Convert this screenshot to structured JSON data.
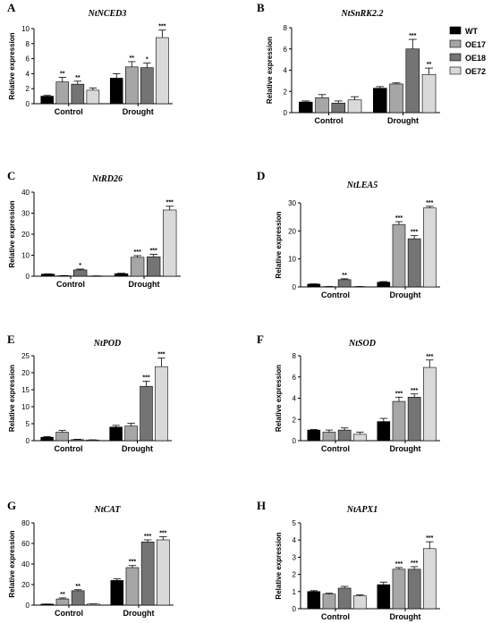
{
  "chart_data": [
    {
      "type": "bar",
      "panel": "A",
      "title": "NtNCED3",
      "ylabel": "Relative expression",
      "categories": [
        "Control",
        "Drought"
      ],
      "ylim": [
        0,
        10
      ],
      "yticks": [
        0,
        2,
        4,
        6,
        8,
        10
      ],
      "series": [
        {
          "name": "WT",
          "values": [
            1.0,
            3.4
          ],
          "errors": [
            0.1,
            0.6
          ],
          "sig": [
            "",
            ""
          ]
        },
        {
          "name": "OE17",
          "values": [
            2.9,
            4.9
          ],
          "errors": [
            0.6,
            0.7
          ],
          "sig": [
            "**",
            "**"
          ]
        },
        {
          "name": "OE18",
          "values": [
            2.6,
            4.8
          ],
          "errors": [
            0.4,
            0.6
          ],
          "sig": [
            "**",
            "*"
          ]
        },
        {
          "name": "OE72",
          "values": [
            1.8,
            8.8
          ],
          "errors": [
            0.3,
            1.0
          ],
          "sig": [
            "",
            "***"
          ]
        }
      ]
    },
    {
      "type": "bar",
      "panel": "B",
      "title": "NtSnRK2.2",
      "ylabel": "Relative expression",
      "categories": [
        "Control",
        "Drought"
      ],
      "ylim": [
        0,
        8
      ],
      "yticks": [
        0,
        2,
        4,
        6,
        8
      ],
      "series": [
        {
          "name": "WT",
          "values": [
            1.0,
            2.3
          ],
          "errors": [
            0.1,
            0.15
          ],
          "sig": [
            "",
            ""
          ]
        },
        {
          "name": "OE17",
          "values": [
            1.4,
            2.7
          ],
          "errors": [
            0.3,
            0.1
          ],
          "sig": [
            "",
            ""
          ]
        },
        {
          "name": "OE18",
          "values": [
            0.9,
            6.0
          ],
          "errors": [
            0.2,
            0.9
          ],
          "sig": [
            "",
            "***"
          ]
        },
        {
          "name": "OE72",
          "values": [
            1.2,
            3.6
          ],
          "errors": [
            0.3,
            0.6
          ],
          "sig": [
            "",
            "**"
          ]
        }
      ]
    },
    {
      "type": "bar",
      "panel": "C",
      "title": "NtRD26",
      "ylabel": "Relative expression",
      "categories": [
        "Control",
        "Drought"
      ],
      "ylim": [
        0,
        40
      ],
      "yticks": [
        0,
        10,
        20,
        30,
        40
      ],
      "series": [
        {
          "name": "WT",
          "values": [
            1.0,
            1.2
          ],
          "errors": [
            0.1,
            0.2
          ],
          "sig": [
            "",
            ""
          ]
        },
        {
          "name": "OE17",
          "values": [
            0.2,
            9.0
          ],
          "errors": [
            0.1,
            0.8
          ],
          "sig": [
            "",
            "***"
          ]
        },
        {
          "name": "OE18",
          "values": [
            3.0,
            9.2
          ],
          "errors": [
            0.4,
            1.2
          ],
          "sig": [
            "*",
            "***"
          ]
        },
        {
          "name": "OE72",
          "values": [
            0.1,
            31.5
          ],
          "errors": [
            0.05,
            1.8
          ],
          "sig": [
            "",
            "***"
          ]
        }
      ]
    },
    {
      "type": "bar",
      "panel": "D",
      "title": "NtLEA5",
      "ylabel": "Relative expression",
      "categories": [
        "Control",
        "Drought"
      ],
      "ylim": [
        0,
        30
      ],
      "yticks": [
        0,
        10,
        20,
        30
      ],
      "series": [
        {
          "name": "WT",
          "values": [
            1.0,
            1.7
          ],
          "errors": [
            0.1,
            0.2
          ],
          "sig": [
            "",
            ""
          ]
        },
        {
          "name": "OE17",
          "values": [
            0.1,
            22.3
          ],
          "errors": [
            0.05,
            1.0
          ],
          "sig": [
            "",
            "***"
          ]
        },
        {
          "name": "OE18",
          "values": [
            2.6,
            17.2
          ],
          "errors": [
            0.3,
            1.1
          ],
          "sig": [
            "**",
            "***"
          ]
        },
        {
          "name": "OE72",
          "values": [
            0.1,
            28.2
          ],
          "errors": [
            0.05,
            0.6
          ],
          "sig": [
            "",
            "***"
          ]
        }
      ]
    },
    {
      "type": "bar",
      "panel": "E",
      "title": "NtPOD",
      "ylabel": "Relative expression",
      "categories": [
        "Control",
        "Drought"
      ],
      "ylim": [
        0,
        25
      ],
      "yticks": [
        0,
        5,
        10,
        15,
        20,
        25
      ],
      "series": [
        {
          "name": "WT",
          "values": [
            1.0,
            4.0
          ],
          "errors": [
            0.2,
            0.5
          ],
          "sig": [
            "",
            ""
          ]
        },
        {
          "name": "OE17",
          "values": [
            2.5,
            4.3
          ],
          "errors": [
            0.5,
            0.8
          ],
          "sig": [
            "",
            ""
          ]
        },
        {
          "name": "OE18",
          "values": [
            0.3,
            16.0
          ],
          "errors": [
            0.1,
            1.5
          ],
          "sig": [
            "",
            "***"
          ]
        },
        {
          "name": "OE72",
          "values": [
            0.2,
            21.8
          ],
          "errors": [
            0.05,
            2.5
          ],
          "sig": [
            "",
            "***"
          ]
        }
      ]
    },
    {
      "type": "bar",
      "panel": "F",
      "title": "NtSOD",
      "ylabel": "Relative expression",
      "categories": [
        "Control",
        "Drought"
      ],
      "ylim": [
        0,
        8
      ],
      "yticks": [
        0,
        2,
        4,
        6,
        8
      ],
      "series": [
        {
          "name": "WT",
          "values": [
            1.0,
            1.8
          ],
          "errors": [
            0.05,
            0.3
          ],
          "sig": [
            "",
            ""
          ]
        },
        {
          "name": "OE17",
          "values": [
            0.8,
            3.7
          ],
          "errors": [
            0.2,
            0.4
          ],
          "sig": [
            "",
            "***"
          ]
        },
        {
          "name": "OE18",
          "values": [
            1.0,
            4.1
          ],
          "errors": [
            0.2,
            0.3
          ],
          "sig": [
            "",
            "***"
          ]
        },
        {
          "name": "OE72",
          "values": [
            0.6,
            6.9
          ],
          "errors": [
            0.2,
            0.7
          ],
          "sig": [
            "",
            "***"
          ]
        }
      ]
    },
    {
      "type": "bar",
      "panel": "G",
      "title": "NtCAT",
      "ylabel": "Relative expression",
      "categories": [
        "Control",
        "Drought"
      ],
      "ylim": [
        0,
        80
      ],
      "yticks": [
        0,
        20,
        40,
        60,
        80
      ],
      "series": [
        {
          "name": "WT",
          "values": [
            1.0,
            24.0
          ],
          "errors": [
            0.1,
            1.5
          ],
          "sig": [
            "",
            ""
          ]
        },
        {
          "name": "OE17",
          "values": [
            6.0,
            36.5
          ],
          "errors": [
            1.0,
            2.0
          ],
          "sig": [
            "**",
            "***"
          ]
        },
        {
          "name": "OE18",
          "values": [
            14.0,
            61.5
          ],
          "errors": [
            1.0,
            2.0
          ],
          "sig": [
            "**",
            "***"
          ]
        },
        {
          "name": "OE72",
          "values": [
            1.0,
            63.5
          ],
          "errors": [
            0.2,
            3.0
          ],
          "sig": [
            "",
            "***"
          ]
        }
      ]
    },
    {
      "type": "bar",
      "panel": "H",
      "title": "NtAPX1",
      "ylabel": "Relative expression",
      "categories": [
        "Control",
        "Drought"
      ],
      "ylim": [
        0,
        5
      ],
      "yticks": [
        0,
        1,
        2,
        3,
        4,
        5
      ],
      "series": [
        {
          "name": "WT",
          "values": [
            1.0,
            1.4
          ],
          "errors": [
            0.05,
            0.15
          ],
          "sig": [
            "",
            ""
          ]
        },
        {
          "name": "OE17",
          "values": [
            0.85,
            2.3
          ],
          "errors": [
            0.05,
            0.1
          ],
          "sig": [
            "",
            "***"
          ]
        },
        {
          "name": "OE18",
          "values": [
            1.2,
            2.3
          ],
          "errors": [
            0.1,
            0.15
          ],
          "sig": [
            "",
            "***"
          ]
        },
        {
          "name": "OE72",
          "values": [
            0.75,
            3.5
          ],
          "errors": [
            0.05,
            0.4
          ],
          "sig": [
            "",
            "***"
          ]
        }
      ]
    }
  ],
  "legend": {
    "placement": "top-right",
    "items": [
      {
        "name": "WT",
        "color": "#000000"
      },
      {
        "name": "OE17",
        "color": "#a6a6a6"
      },
      {
        "name": "OE18",
        "color": "#747474"
      },
      {
        "name": "OE72",
        "color": "#d9d9d9"
      }
    ]
  }
}
